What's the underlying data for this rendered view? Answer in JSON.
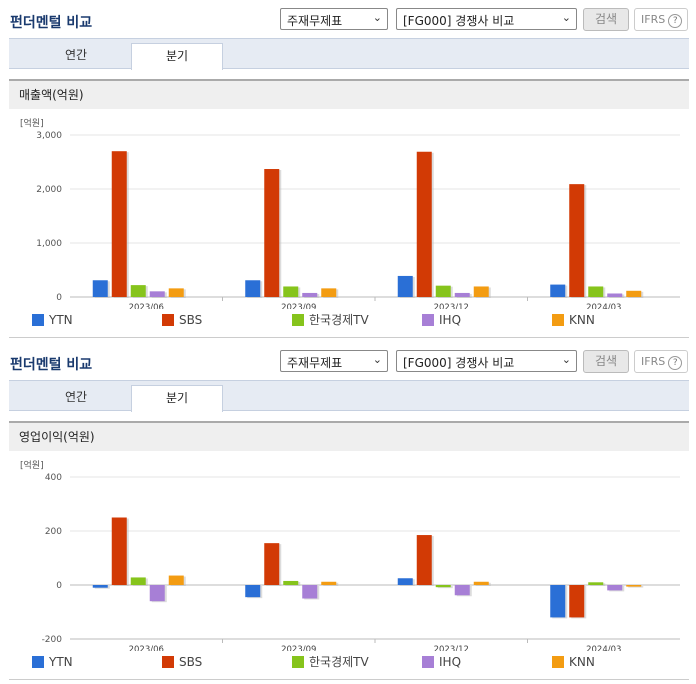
{
  "colors": {
    "YTN": "#2a6fd6",
    "SBS": "#d23a05",
    "KEBS": "#86c41c",
    "IHQ": "#a77fd6",
    "KNN": "#f39c12"
  },
  "panels": [
    {
      "title": "펀더멘털 비교",
      "select1": "주재무제표",
      "select2": "[FG000] 경쟁사 비교",
      "search_label": "검색",
      "ifrs_label": "IFRS",
      "ifrs_help": "?",
      "tab_annual": "연간",
      "tab_quarter": "분기",
      "metric_label": "매출액(억원)",
      "legend": [
        "YTN",
        "SBS",
        "한국경제TV",
        "IHQ",
        "KNN"
      ]
    },
    {
      "title": "펀더멘털 비교",
      "select1": "주재무제표",
      "select2": "[FG000] 경쟁사 비교",
      "search_label": "검색",
      "ifrs_label": "IFRS",
      "ifrs_help": "?",
      "tab_annual": "연간",
      "tab_quarter": "분기",
      "metric_label": "영업이익(억원)",
      "legend": [
        "YTN",
        "SBS",
        "한국경제TV",
        "IHQ",
        "KNN"
      ]
    }
  ],
  "chart_data": [
    {
      "type": "bar",
      "unit_label": "[억원]",
      "categories": [
        "2023/06",
        "2023/09",
        "2023/12",
        "2024/03"
      ],
      "ylim": [
        0,
        3000
      ],
      "yticks": [
        0,
        1000,
        2000,
        3000
      ],
      "ytick_labels": [
        "0",
        "1,000",
        "2,000",
        "3,000"
      ],
      "grid": true,
      "series": [
        {
          "name": "YTN",
          "values": [
            310,
            310,
            390,
            230
          ]
        },
        {
          "name": "SBS",
          "values": [
            2700,
            2370,
            2690,
            2090
          ]
        },
        {
          "name": "한국경제TV",
          "values": [
            220,
            195,
            210,
            195
          ]
        },
        {
          "name": "IHQ",
          "values": [
            105,
            75,
            75,
            65
          ]
        },
        {
          "name": "KNN",
          "values": [
            160,
            160,
            195,
            115
          ]
        }
      ]
    },
    {
      "type": "bar",
      "unit_label": "[억원]",
      "categories": [
        "2023/06",
        "2023/09",
        "2023/12",
        "2024/03"
      ],
      "ylim": [
        -200,
        400
      ],
      "yticks": [
        -200,
        0,
        200,
        400
      ],
      "ytick_labels": [
        "-200",
        "0",
        "200",
        "400"
      ],
      "grid": true,
      "series": [
        {
          "name": "YTN",
          "values": [
            -10,
            -45,
            25,
            -120
          ]
        },
        {
          "name": "SBS",
          "values": [
            250,
            155,
            185,
            -120
          ]
        },
        {
          "name": "한국경제TV",
          "values": [
            28,
            15,
            -8,
            10
          ]
        },
        {
          "name": "IHQ",
          "values": [
            -60,
            -50,
            -38,
            -20
          ]
        },
        {
          "name": "KNN",
          "values": [
            35,
            12,
            12,
            -6
          ]
        }
      ]
    }
  ]
}
